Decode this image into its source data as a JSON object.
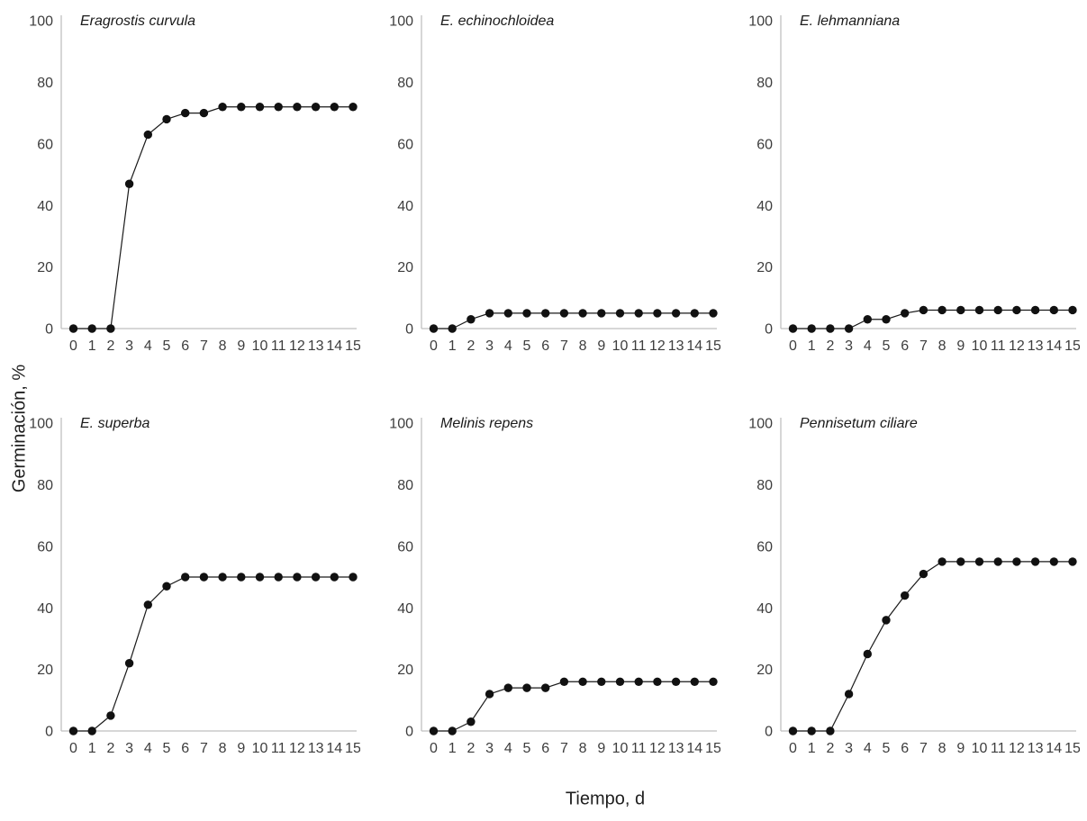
{
  "figure": {
    "ylabel": "Germinación, %",
    "xlabel": "Tiempo, d"
  },
  "chart_data": {
    "type": "line",
    "layout": "small-multiples 2 rows x 3 columns",
    "title": "",
    "xlabel": "Tiempo, d",
    "ylabel": "Germinación, %",
    "x": [
      0,
      1,
      2,
      3,
      4,
      5,
      6,
      7,
      8,
      9,
      10,
      11,
      12,
      13,
      14,
      15
    ],
    "xticks": [
      0,
      1,
      2,
      3,
      4,
      5,
      6,
      7,
      8,
      9,
      10,
      11,
      12,
      13,
      14,
      15
    ],
    "yticks": [
      0,
      20,
      40,
      60,
      80,
      100
    ],
    "ylim": [
      0,
      100
    ],
    "xlim": [
      0,
      15
    ],
    "grid": false,
    "legend": "none",
    "marker": "filled-circle",
    "series": [
      {
        "name": "Eragrostis curvula",
        "values": [
          0,
          0,
          0,
          47,
          63,
          68,
          70,
          70,
          72,
          72,
          72,
          72,
          72,
          72,
          72,
          72
        ]
      },
      {
        "name": "E. echinochloidea",
        "values": [
          0,
          0,
          3,
          5,
          5,
          5,
          5,
          5,
          5,
          5,
          5,
          5,
          5,
          5,
          5,
          5
        ]
      },
      {
        "name": "E. lehmanniana",
        "values": [
          0,
          0,
          0,
          0,
          3,
          3,
          5,
          6,
          6,
          6,
          6,
          6,
          6,
          6,
          6,
          6
        ]
      },
      {
        "name": "E. superba",
        "values": [
          0,
          0,
          5,
          22,
          41,
          47,
          50,
          50,
          50,
          50,
          50,
          50,
          50,
          50,
          50,
          50
        ]
      },
      {
        "name": "Melinis repens",
        "values": [
          0,
          0,
          3,
          12,
          14,
          14,
          14,
          16,
          16,
          16,
          16,
          16,
          16,
          16,
          16,
          16
        ]
      },
      {
        "name": "Pennisetum ciliare",
        "values": [
          0,
          0,
          0,
          12,
          25,
          36,
          44,
          51,
          55,
          55,
          55,
          55,
          55,
          55,
          55,
          55
        ]
      }
    ],
    "colors": {
      "line": "#1a1a1a",
      "marker": "#111111",
      "axis_line": "#bfbfbf",
      "tick_text": "#3d3d3d",
      "title_text": "#1a1a1a",
      "background": "#ffffff"
    }
  }
}
